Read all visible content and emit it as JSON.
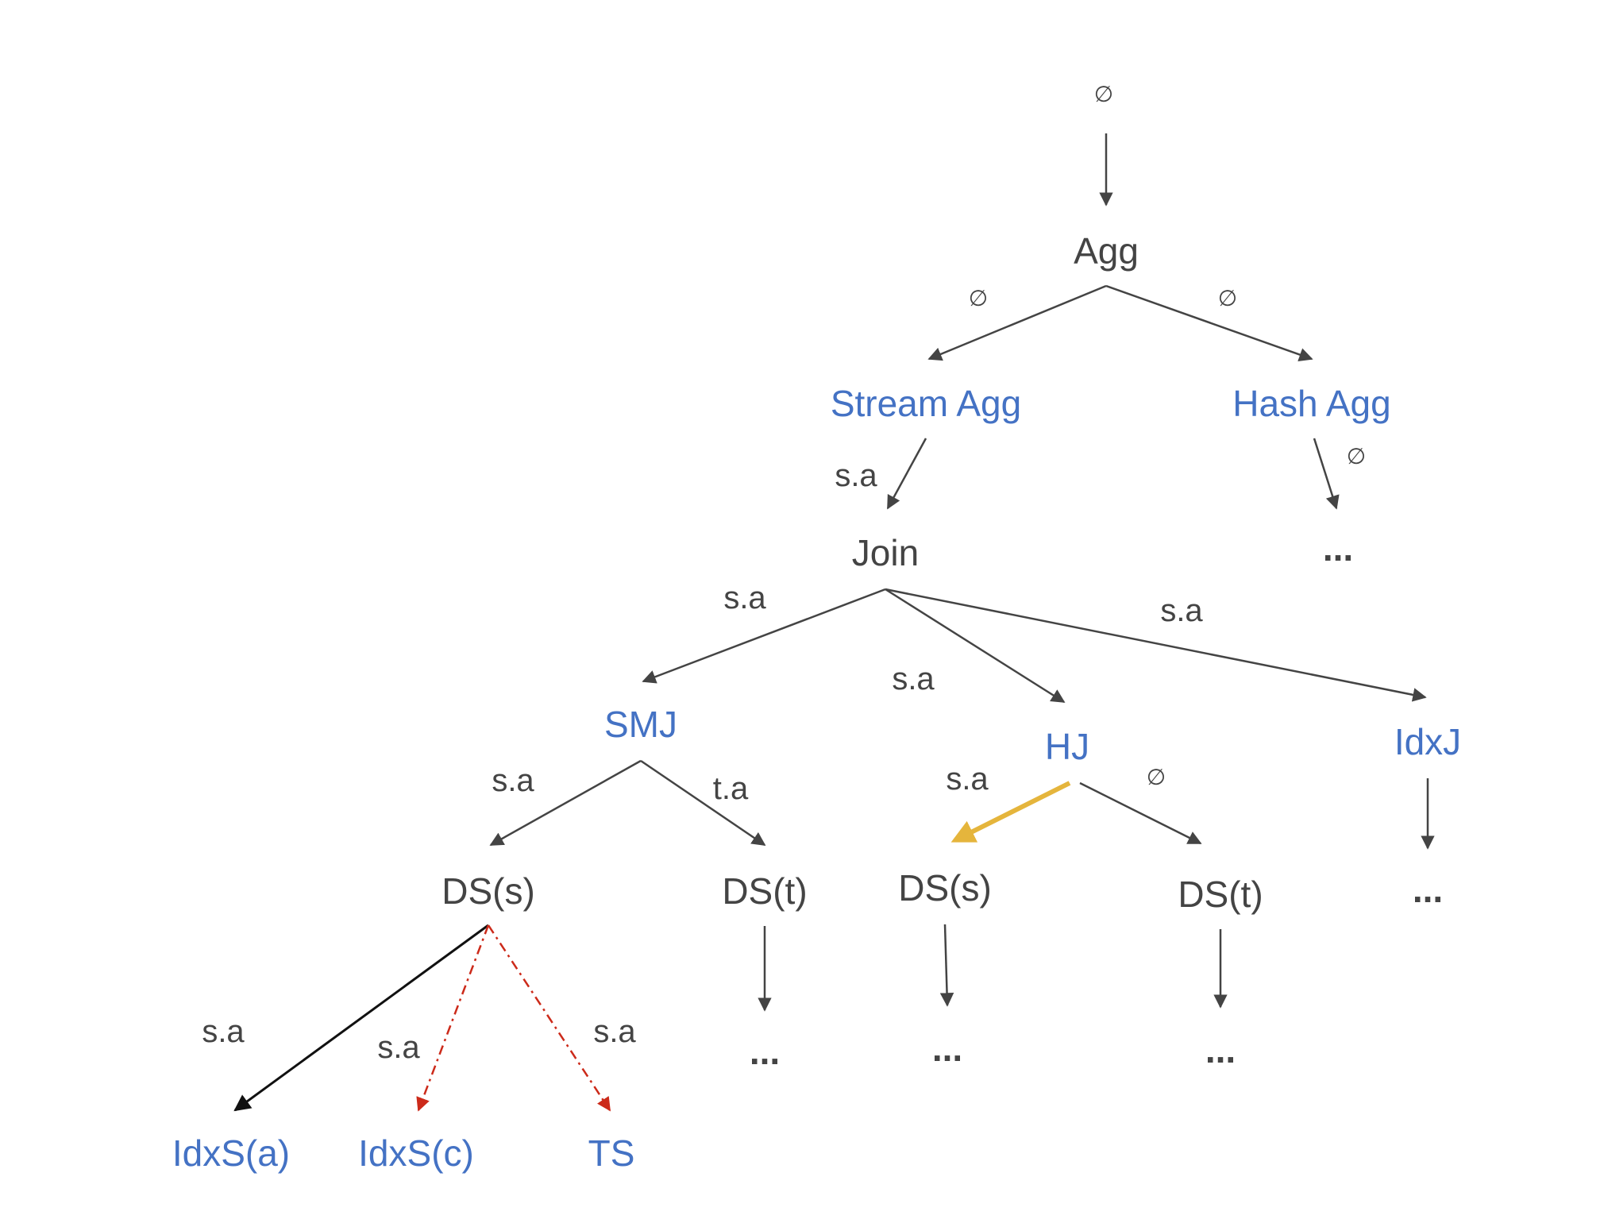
{
  "colors": {
    "logical": "#444444",
    "physical": "#4472c4",
    "edge": "#444444",
    "edge_solid_dark": "#111111",
    "dashed": "#cc2a1a",
    "highlight": "#e5b53c"
  },
  "root": {
    "label": "∅"
  },
  "nodes": {
    "agg": "Agg",
    "stream_agg": "Stream Agg",
    "hash_agg": "Hash Agg",
    "hash_agg_child": "...",
    "join": "Join",
    "smj": "SMJ",
    "hj": "HJ",
    "idxj": "IdxJ",
    "idxj_child": "...",
    "smj_ds_s": "DS(s)",
    "smj_ds_t": "DS(t)",
    "hj_ds_s": "DS(s)",
    "hj_ds_t": "DS(t)",
    "smj_ds_t_child": "...",
    "hj_ds_s_child": "...",
    "hj_ds_t_child": "...",
    "idxs_a": "IdxS(a)",
    "idxs_c": "IdxS(c)",
    "ts": "TS"
  },
  "edge_labels": {
    "agg_stream": "∅",
    "agg_hash": "∅",
    "stream_join": "s.a",
    "hash_child": "∅",
    "join_smj": "s.a",
    "join_hj": "s.a",
    "join_idxj": "s.a",
    "smj_ds_s": "s.a",
    "smj_ds_t": "t.a",
    "hj_ds_s": "s.a",
    "hj_ds_t": "∅",
    "ds_idxs_a": "s.a",
    "ds_idxs_c": "s.a",
    "ds_ts": "s.a"
  }
}
